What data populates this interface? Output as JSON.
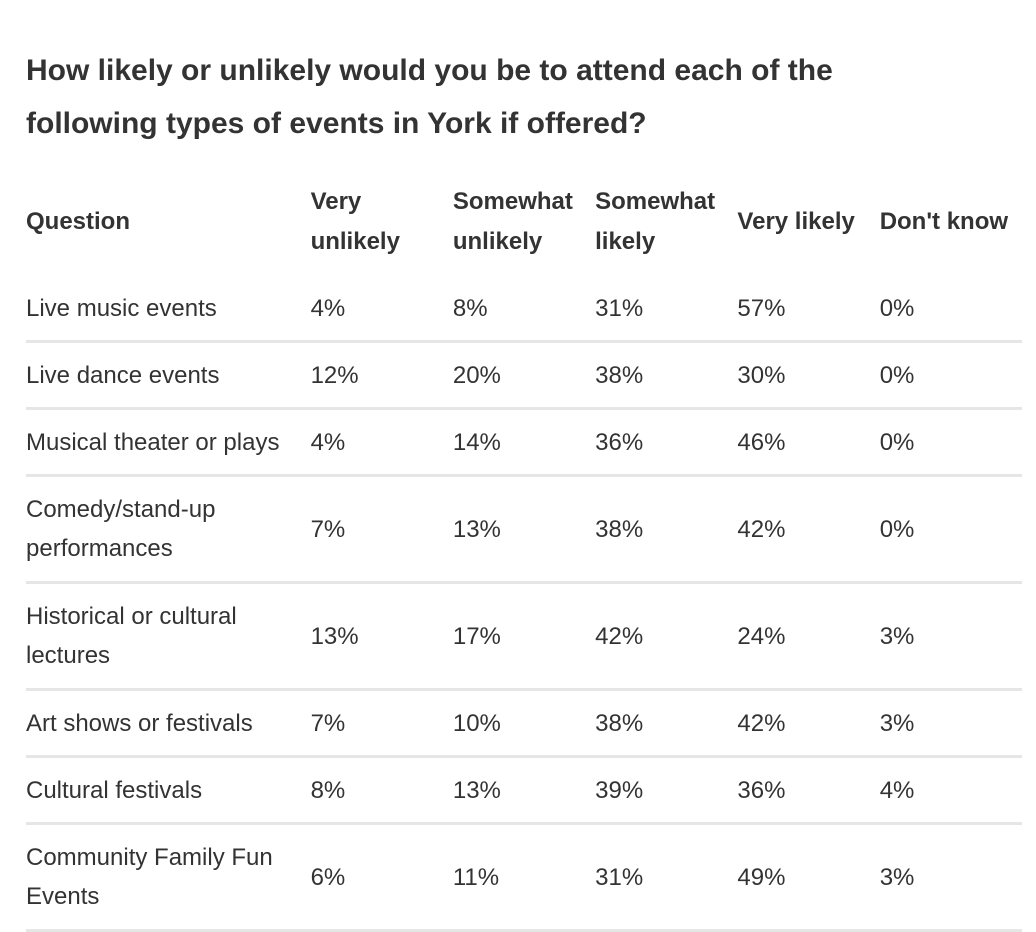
{
  "chart_data": {
    "type": "table",
    "title": "How likely or unlikely would you be to attend each of the following types of events in York if offered?",
    "columns": [
      "Question",
      "Very unlikely",
      "Somewhat unlikely",
      "Somewhat likely",
      "Very likely",
      "Don't know"
    ],
    "rows": [
      [
        "Live music events",
        "4%",
        "8%",
        "31%",
        "57%",
        "0%"
      ],
      [
        "Live dance events",
        "12%",
        "20%",
        "38%",
        "30%",
        "0%"
      ],
      [
        "Musical theater or plays",
        "4%",
        "14%",
        "36%",
        "46%",
        "0%"
      ],
      [
        "Comedy/stand-up performances",
        "7%",
        "13%",
        "38%",
        "42%",
        "0%"
      ],
      [
        "Historical or cultural lectures",
        "13%",
        "17%",
        "42%",
        "24%",
        "3%"
      ],
      [
        "Art shows or festivals",
        "7%",
        "10%",
        "38%",
        "42%",
        "3%"
      ],
      [
        "Cultural festivals",
        "8%",
        "13%",
        "39%",
        "36%",
        "4%"
      ],
      [
        "Community Family Fun Events",
        "6%",
        "11%",
        "31%",
        "49%",
        "3%"
      ]
    ]
  }
}
